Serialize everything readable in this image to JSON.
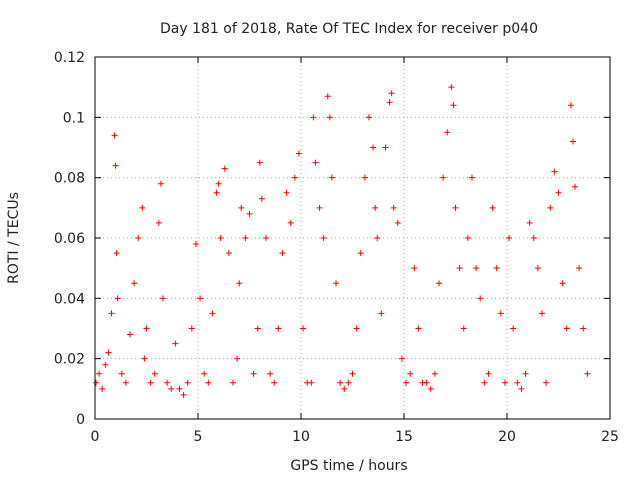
{
  "chart_data": {
    "type": "scatter",
    "title": "Day 181 of 2018, Rate Of TEC Index for receiver p040",
    "xlabel": "GPS time / hours",
    "ylabel": "ROTI / TECUs",
    "xlim": [
      0,
      25
    ],
    "ylim": [
      0,
      0.12
    ],
    "xticks": [
      0,
      5,
      10,
      15,
      20,
      25
    ],
    "yticks": [
      0,
      0.02,
      0.04,
      0.06,
      0.08,
      0.1,
      0.12
    ],
    "xtick_labels": [
      "0",
      "5",
      "10",
      "15",
      "20",
      "25"
    ],
    "ytick_labels": [
      "0",
      "0.02",
      "0.04",
      "0.06",
      "0.08",
      "0.1",
      "0.12"
    ],
    "grid": true,
    "marker": "+",
    "series": [
      {
        "name": "ROTI",
        "color": "#ff0000",
        "x": [
          0.05,
          0.2,
          0.35,
          0.5,
          0.65,
          0.8,
          0.95,
          1.0,
          1.05,
          1.1,
          1.3,
          1.5,
          1.7,
          1.9,
          2.1,
          2.3,
          2.4,
          2.5,
          2.7,
          2.9,
          3.1,
          3.2,
          3.3,
          3.5,
          3.7,
          3.9,
          4.1,
          4.3,
          4.5,
          4.7,
          4.9,
          5.1,
          5.3,
          5.5,
          5.7,
          5.9,
          6.0,
          6.1,
          6.3,
          6.5,
          6.7,
          6.9,
          7.0,
          7.1,
          7.3,
          7.5,
          7.7,
          7.9,
          8.0,
          8.1,
          8.3,
          8.5,
          8.7,
          8.9,
          9.1,
          9.3,
          9.5,
          9.7,
          9.9,
          10.1,
          10.3,
          10.5,
          10.6,
          10.7,
          10.9,
          11.1,
          11.3,
          11.4,
          11.5,
          11.7,
          11.9,
          12.1,
          12.3,
          12.5,
          12.7,
          12.9,
          13.1,
          13.3,
          13.5,
          13.6,
          13.7,
          13.9,
          14.1,
          14.3,
          14.4,
          14.5,
          14.7,
          14.9,
          15.1,
          15.3,
          15.5,
          15.7,
          15.9,
          16.1,
          16.3,
          16.5,
          16.7,
          16.9,
          17.1,
          17.3,
          17.4,
          17.5,
          17.7,
          17.9,
          18.1,
          18.3,
          18.5,
          18.7,
          18.9,
          19.1,
          19.3,
          19.5,
          19.7,
          19.9,
          20.1,
          20.3,
          20.5,
          20.7,
          20.9,
          21.1,
          21.3,
          21.5,
          21.7,
          21.9,
          22.1,
          22.3,
          22.5,
          22.7,
          22.9,
          23.1,
          23.2,
          23.3,
          23.5,
          23.7,
          23.9
        ],
        "y": [
          0.012,
          0.015,
          0.01,
          0.018,
          0.022,
          0.035,
          0.094,
          0.084,
          0.055,
          0.04,
          0.015,
          0.012,
          0.028,
          0.045,
          0.06,
          0.07,
          0.02,
          0.03,
          0.012,
          0.015,
          0.065,
          0.078,
          0.04,
          0.012,
          0.01,
          0.025,
          0.01,
          0.008,
          0.012,
          0.03,
          0.058,
          0.04,
          0.015,
          0.012,
          0.035,
          0.075,
          0.078,
          0.06,
          0.083,
          0.055,
          0.012,
          0.02,
          0.045,
          0.07,
          0.06,
          0.068,
          0.015,
          0.03,
          0.085,
          0.073,
          0.06,
          0.015,
          0.012,
          0.03,
          0.055,
          0.075,
          0.065,
          0.08,
          0.088,
          0.03,
          0.012,
          0.012,
          0.1,
          0.085,
          0.07,
          0.06,
          0.107,
          0.1,
          0.08,
          0.045,
          0.012,
          0.01,
          0.012,
          0.015,
          0.03,
          0.055,
          0.08,
          0.1,
          0.09,
          0.07,
          0.06,
          0.035,
          0.09,
          0.105,
          0.108,
          0.07,
          0.065,
          0.02,
          0.012,
          0.015,
          0.05,
          0.03,
          0.012,
          0.012,
          0.01,
          0.015,
          0.045,
          0.08,
          0.095,
          0.11,
          0.104,
          0.07,
          0.05,
          0.03,
          0.06,
          0.08,
          0.05,
          0.04,
          0.012,
          0.015,
          0.07,
          0.05,
          0.035,
          0.012,
          0.06,
          0.03,
          0.012,
          0.01,
          0.015,
          0.065,
          0.06,
          0.05,
          0.035,
          0.012,
          0.07,
          0.082,
          0.075,
          0.045,
          0.03,
          0.104,
          0.092,
          0.077,
          0.05,
          0.03,
          0.015
        ]
      }
    ]
  }
}
